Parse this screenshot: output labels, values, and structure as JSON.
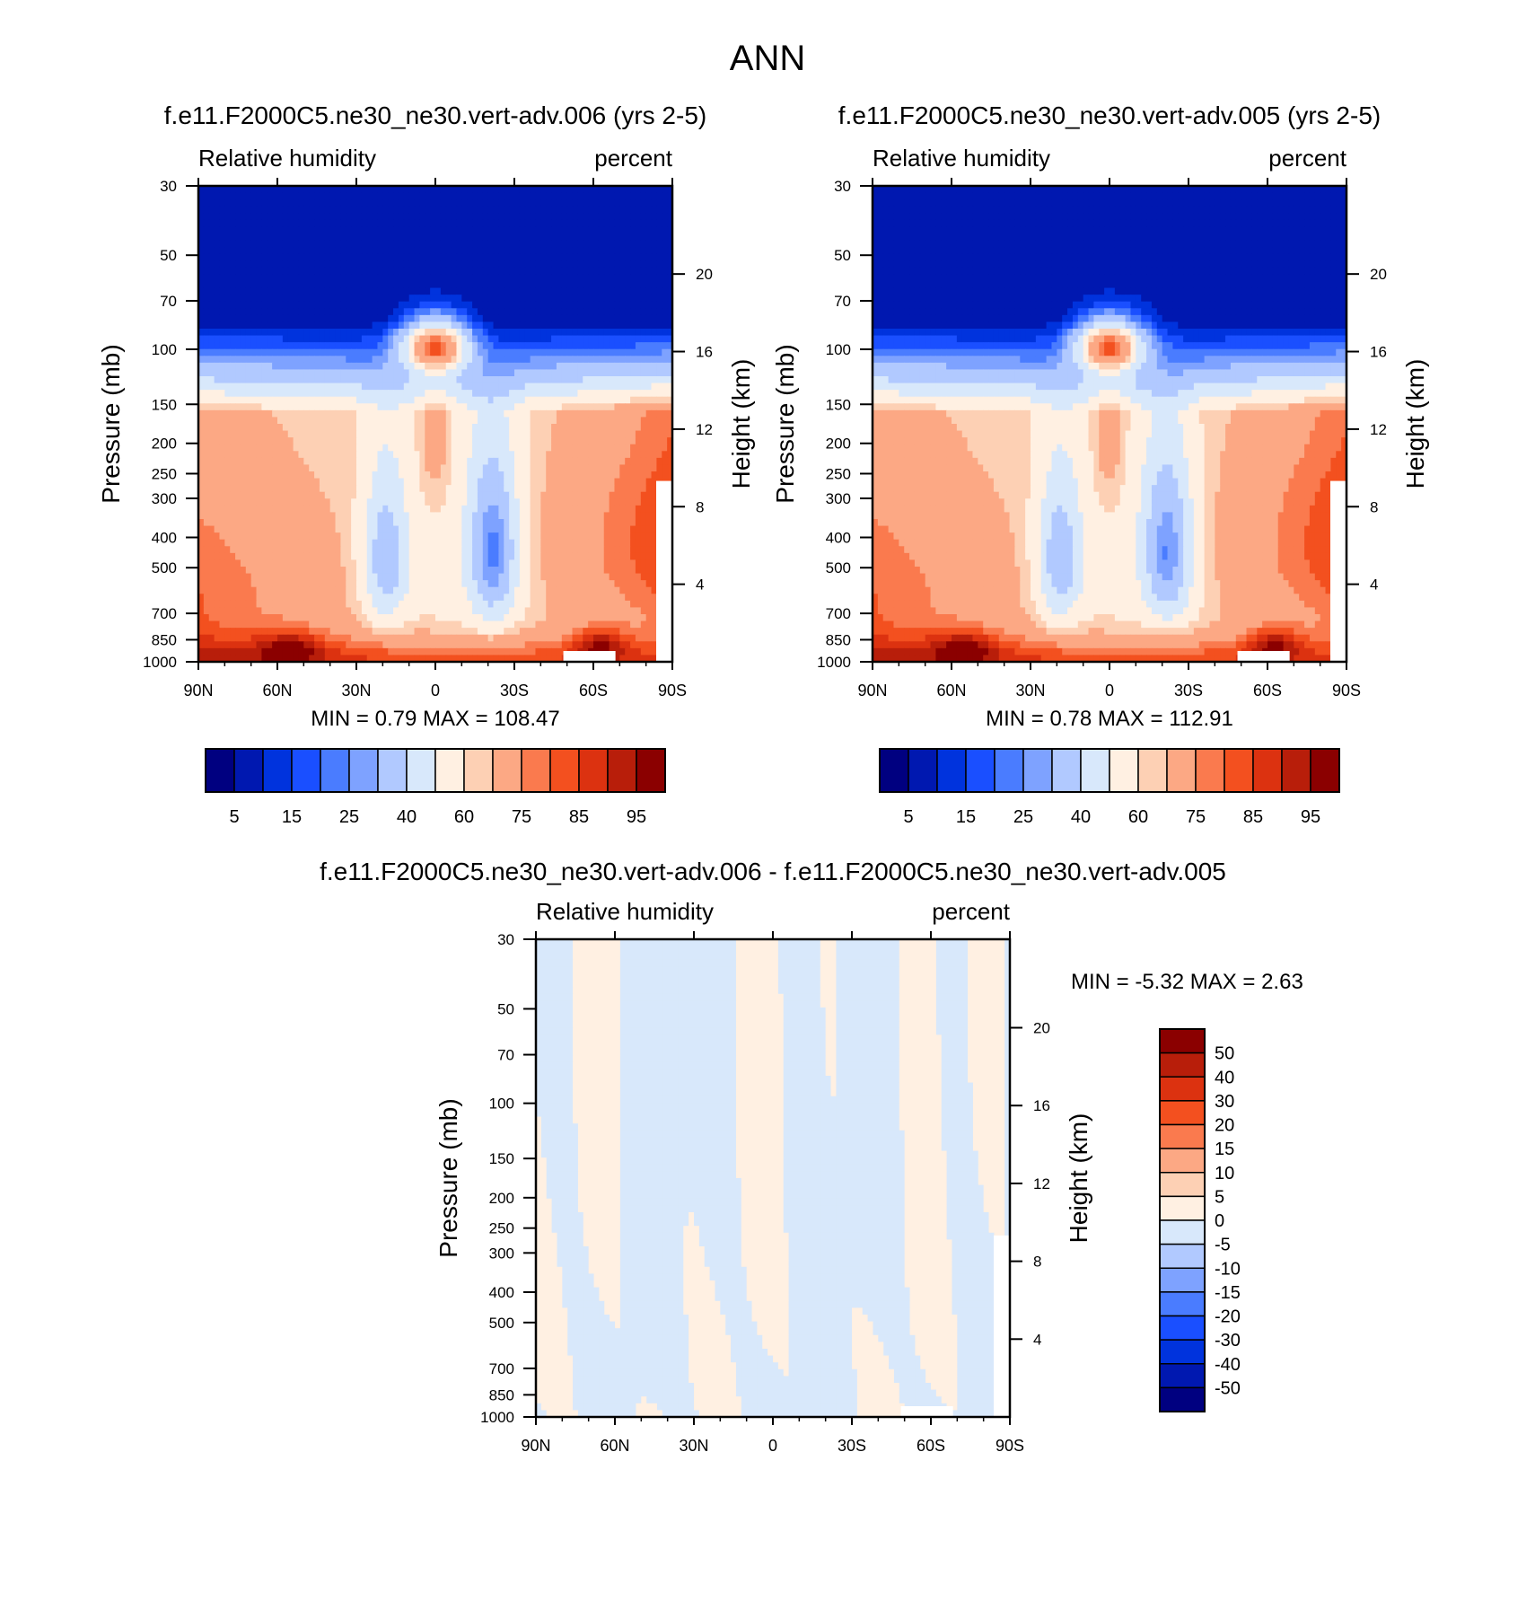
{
  "figure": {
    "title": "ANN",
    "colors": {
      "rh_fills": [
        "#000080",
        "#0018b0",
        "#0033dd",
        "#1a4fff",
        "#4a7cff",
        "#7ea2ff",
        "#b1c9ff",
        "#d8e8fb",
        "#fff0e2",
        "#fdd0b4",
        "#fca884",
        "#fa7a4e",
        "#f3501f",
        "#dc3210",
        "#b81e0a",
        "#8b0000"
      ],
      "diff_fills": [
        "#000080",
        "#0018b0",
        "#0033dd",
        "#1a4fff",
        "#4a7cff",
        "#7ea2ff",
        "#b1c9ff",
        "#d8e8fb",
        "#fff0e2",
        "#fdd0b4",
        "#fca884",
        "#fa7a4e",
        "#f3501f",
        "#dc3210",
        "#b81e0a",
        "#8b0000"
      ]
    }
  },
  "chart_data": [
    {
      "type": "heatmap",
      "title": "f.e11.F2000C5.ne30_ne30.vert-adv.006 (yrs 2-5)",
      "left_label": "Relative humidity",
      "right_label": "percent",
      "ylabel": "Pressure (mb)",
      "y2label": "Height (km)",
      "x_ticks": [
        "90N",
        "60N",
        "30N",
        "0",
        "30S",
        "60S",
        "90S"
      ],
      "y_ticks": [
        "30",
        "50",
        "70",
        "100",
        "150",
        "200",
        "250",
        "300",
        "400",
        "500",
        "700",
        "850",
        "1000"
      ],
      "y2_ticks": [
        "20",
        "16",
        "12",
        "8",
        "4"
      ],
      "xlim": [
        90,
        -90
      ],
      "ylim": [
        1000,
        30
      ],
      "y_scale": "log",
      "min_max_text": "MIN =   0.79  MAX = 108.47",
      "levels": [
        5,
        10,
        15,
        20,
        25,
        30,
        40,
        50,
        60,
        65,
        75,
        80,
        85,
        90,
        95
      ],
      "colorbar_labels": [
        "5",
        "15",
        "25",
        "40",
        "60",
        "75",
        "85",
        "95"
      ]
    },
    {
      "type": "heatmap",
      "title": "f.e11.F2000C5.ne30_ne30.vert-adv.005 (yrs 2-5)",
      "left_label": "Relative humidity",
      "right_label": "percent",
      "ylabel": "Pressure (mb)",
      "y2label": "Height (km)",
      "x_ticks": [
        "90N",
        "60N",
        "30N",
        "0",
        "30S",
        "60S",
        "90S"
      ],
      "y_ticks": [
        "30",
        "50",
        "70",
        "100",
        "150",
        "200",
        "250",
        "300",
        "400",
        "500",
        "700",
        "850",
        "1000"
      ],
      "y2_ticks": [
        "20",
        "16",
        "12",
        "8",
        "4"
      ],
      "xlim": [
        90,
        -90
      ],
      "ylim": [
        1000,
        30
      ],
      "y_scale": "log",
      "min_max_text": "MIN =   0.78  MAX = 112.91",
      "levels": [
        5,
        10,
        15,
        20,
        25,
        30,
        40,
        50,
        60,
        65,
        75,
        80,
        85,
        90,
        95
      ],
      "colorbar_labels": [
        "5",
        "15",
        "25",
        "40",
        "60",
        "75",
        "85",
        "95"
      ]
    },
    {
      "type": "heatmap",
      "title": "f.e11.F2000C5.ne30_ne30.vert-adv.006 - f.e11.F2000C5.ne30_ne30.vert-adv.005",
      "left_label": "Relative humidity",
      "right_label": "percent",
      "ylabel": "Pressure (mb)",
      "y2label": "Height (km)",
      "x_ticks": [
        "90N",
        "60N",
        "30N",
        "0",
        "30S",
        "60S",
        "90S"
      ],
      "y_ticks": [
        "30",
        "50",
        "70",
        "100",
        "150",
        "200",
        "250",
        "300",
        "400",
        "500",
        "700",
        "850",
        "1000"
      ],
      "y2_ticks": [
        "20",
        "16",
        "12",
        "8",
        "4"
      ],
      "xlim": [
        90,
        -90
      ],
      "ylim": [
        1000,
        30
      ],
      "y_scale": "log",
      "min_max_text": "MIN =  -5.32  MAX =   2.63",
      "levels": [
        -50,
        -40,
        -30,
        -20,
        -15,
        -10,
        -5,
        0,
        5,
        10,
        15,
        20,
        30,
        40,
        50
      ],
      "colorbar_labels": [
        "50",
        "40",
        "30",
        "20",
        "15",
        "10",
        "5",
        "0",
        "-5",
        "-10",
        "-15",
        "-20",
        "-30",
        "-40",
        "-50"
      ]
    }
  ]
}
